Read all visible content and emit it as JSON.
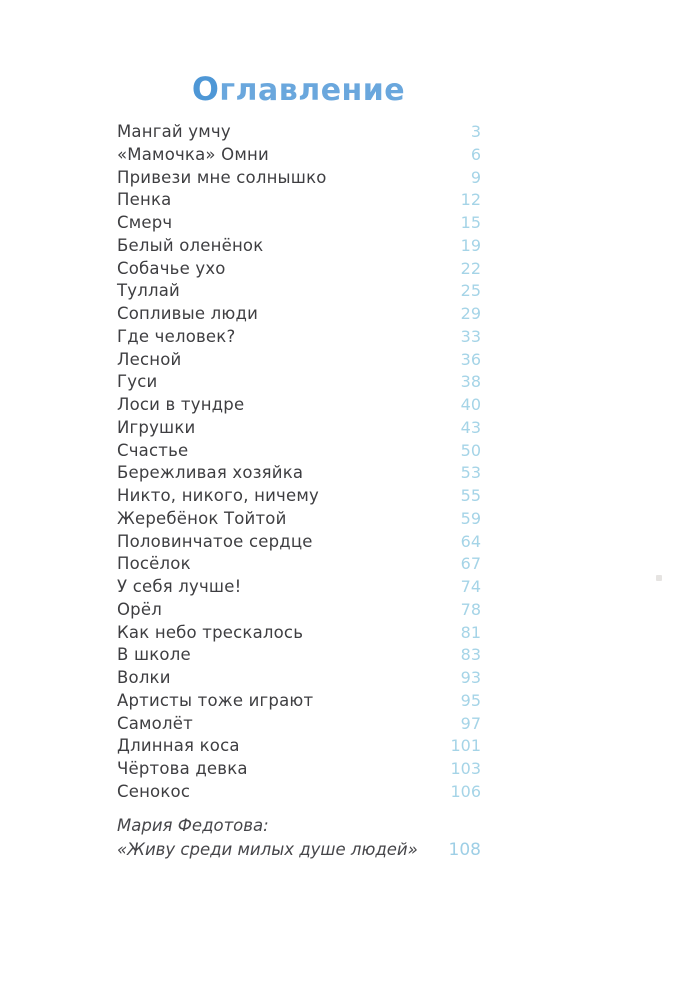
{
  "page": {
    "title": "Оглавление",
    "accent_color": "#5b9fd9",
    "page_number_color": "#a5d4e7",
    "text_color": "#3e3e41"
  },
  "toc": {
    "entries": [
      {
        "title": "Мангай умчу",
        "page": "3"
      },
      {
        "title": "«Мамочка» Омни",
        "page": "6"
      },
      {
        "title": "Привези мне солнышко",
        "page": "9"
      },
      {
        "title": "Пенка",
        "page": "12"
      },
      {
        "title": "Смерч",
        "page": "15"
      },
      {
        "title": "Белый оленёнок",
        "page": "19"
      },
      {
        "title": "Собачье ухо",
        "page": "22"
      },
      {
        "title": "Туллай",
        "page": "25"
      },
      {
        "title": "Сопливые люди",
        "page": "29"
      },
      {
        "title": "Где человек?",
        "page": "33"
      },
      {
        "title": "Лесной",
        "page": "36"
      },
      {
        "title": "Гуси",
        "page": "38"
      },
      {
        "title": "Лоси в тундре",
        "page": "40"
      },
      {
        "title": "Игрушки",
        "page": "43"
      },
      {
        "title": "Счастье",
        "page": "50"
      },
      {
        "title": "Бережливая хозяйка",
        "page": "53"
      },
      {
        "title": "Никто, никого, ничему",
        "page": "55"
      },
      {
        "title": "Жеребёнок Тойтой",
        "page": "59"
      },
      {
        "title": "Половинчатое сердце",
        "page": "64"
      },
      {
        "title": "Посёлок",
        "page": "67"
      },
      {
        "title": "У себя лучше!",
        "page": "74"
      },
      {
        "title": "Орёл",
        "page": "78"
      },
      {
        "title": "Как небо трескалось",
        "page": "81"
      },
      {
        "title": "В школе",
        "page": "83"
      },
      {
        "title": "Волки",
        "page": "93"
      },
      {
        "title": "Артисты тоже играют",
        "page": "95"
      },
      {
        "title": "Самолёт",
        "page": "97"
      },
      {
        "title": "Длинная коса",
        "page": "101"
      },
      {
        "title": "Чёртова девка",
        "page": "103"
      },
      {
        "title": "Сенокос",
        "page": "106"
      }
    ],
    "footer_entry": {
      "line1": "Мария Федотова:",
      "line2": "«Живу среди милых душе людей»",
      "page": "108"
    }
  }
}
